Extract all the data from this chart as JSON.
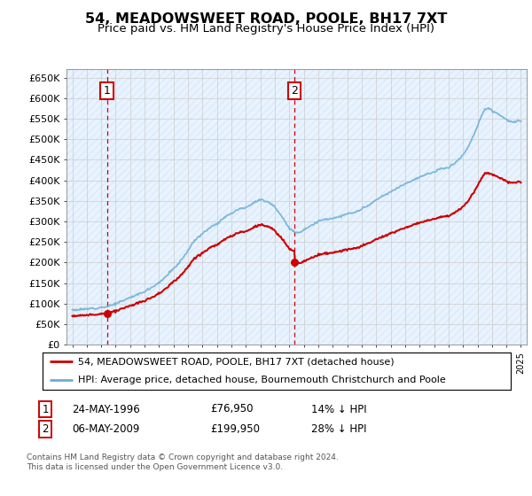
{
  "title": "54, MEADOWSWEET ROAD, POOLE, BH17 7XT",
  "subtitle": "Price paid vs. HM Land Registry's House Price Index (HPI)",
  "title_fontsize": 11.5,
  "subtitle_fontsize": 9.5,
  "ylabel_ticks": [
    "£0",
    "£50K",
    "£100K",
    "£150K",
    "£200K",
    "£250K",
    "£300K",
    "£350K",
    "£400K",
    "£450K",
    "£500K",
    "£550K",
    "£600K",
    "£650K"
  ],
  "ytick_values": [
    0,
    50000,
    100000,
    150000,
    200000,
    250000,
    300000,
    350000,
    400000,
    450000,
    500000,
    550000,
    600000,
    650000
  ],
  "xlim": [
    1993.6,
    2025.4
  ],
  "ylim": [
    0,
    670000
  ],
  "purchase1_year": 1996.39,
  "purchase1_price": 76950,
  "purchase2_year": 2009.35,
  "purchase2_price": 199950,
  "legend_line1": "54, MEADOWSWEET ROAD, POOLE, BH17 7XT (detached house)",
  "legend_line2": "HPI: Average price, detached house, Bournemouth Christchurch and Poole",
  "footnote": "Contains HM Land Registry data © Crown copyright and database right 2024.\nThis data is licensed under the Open Government Licence v3.0.",
  "red_color": "#cc0000",
  "blue_color": "#6baed6",
  "bg_color": "#ddeeff",
  "grid_color": "#aaaaaa"
}
